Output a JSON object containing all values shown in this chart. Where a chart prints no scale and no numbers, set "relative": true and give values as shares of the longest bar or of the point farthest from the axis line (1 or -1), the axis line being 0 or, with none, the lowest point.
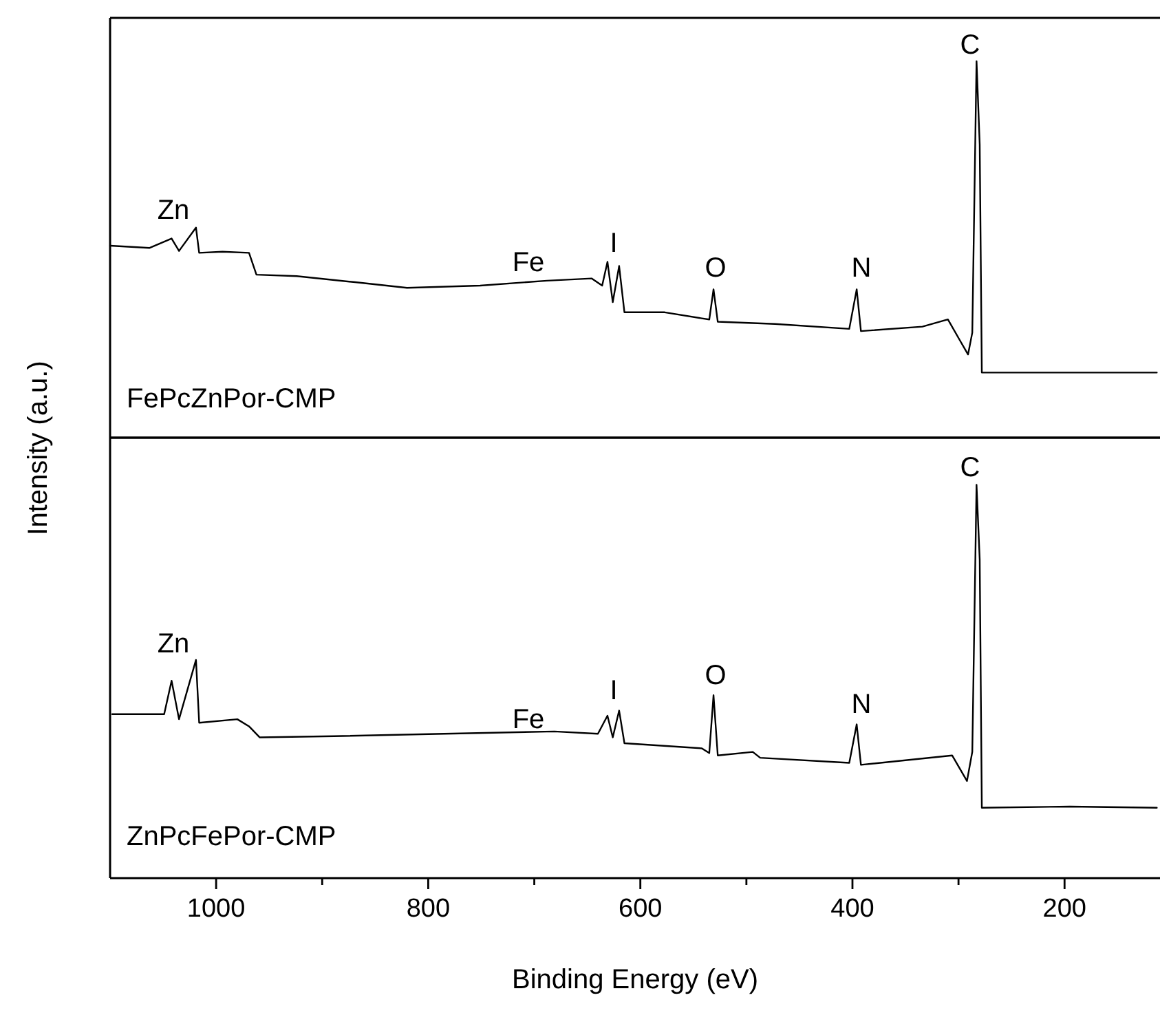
{
  "chart_data": [
    {
      "type": "line",
      "relative": true,
      "xlim": [
        1100,
        110
      ],
      "tick_labels": false,
      "ylabel": "Intensity (a.u.)",
      "x": [
        1100,
        1063,
        1042,
        1035,
        1019,
        1016,
        994,
        969,
        962,
        924,
        869,
        820,
        751,
        688,
        646,
        636,
        631,
        626,
        620,
        615,
        577,
        542,
        535,
        531,
        527,
        473,
        403,
        396,
        392,
        334,
        310,
        299,
        291,
        287,
        283,
        280,
        278,
        195,
        113
      ],
      "series": [
        {
          "color": "#000000",
          "values": [
            0.51,
            0.504,
            0.529,
            0.496,
            0.558,
            0.491,
            0.494,
            0.491,
            0.433,
            0.429,
            0.413,
            0.398,
            0.404,
            0.417,
            0.423,
            0.404,
            0.467,
            0.36,
            0.456,
            0.333,
            0.333,
            0.317,
            0.314,
            0.394,
            0.308,
            0.302,
            0.289,
            0.394,
            0.283,
            0.295,
            0.314,
            0.26,
            0.221,
            0.279,
            1.0,
            0.779,
            0.173,
            0.173,
            0.173
          ]
        }
      ],
      "annotations": [
        "Zn",
        "Fe",
        "I",
        "O",
        "N",
        "C",
        "FePcZnPor-CMP"
      ]
    },
    {
      "type": "line",
      "relative": true,
      "xlim": [
        1100,
        110
      ],
      "tick_labels": "x",
      "xlabel": "Binding Energy (eV)",
      "xticks": [
        1000,
        {
          "value": 900,
          "label": null
        },
        800,
        {
          "value": 700,
          "label": null
        },
        600,
        {
          "value": 500,
          "label": null
        },
        400,
        {
          "value": 300,
          "label": null
        },
        200
      ],
      "x": [
        1098,
        1049,
        1042,
        1035,
        1019,
        1016,
        980,
        969,
        959,
        889,
        785,
        681,
        640,
        631,
        626,
        620,
        615,
        542,
        535,
        531,
        527,
        494,
        487,
        403,
        396,
        392,
        306,
        292,
        287,
        283,
        280,
        278,
        195,
        113
      ],
      "series": [
        {
          "color": "#000000",
          "values": [
            0.417,
            0.417,
            0.502,
            0.404,
            0.555,
            0.395,
            0.404,
            0.386,
            0.358,
            0.361,
            0.367,
            0.373,
            0.367,
            0.413,
            0.358,
            0.426,
            0.343,
            0.33,
            0.318,
            0.465,
            0.312,
            0.321,
            0.306,
            0.293,
            0.391,
            0.288,
            0.312,
            0.247,
            0.321,
            1.0,
            0.81,
            0.179,
            0.182,
            0.179
          ]
        }
      ],
      "annotations": [
        "Zn",
        "Fe",
        "I",
        "O",
        "N",
        "C",
        "ZnPcFePor-CMP"
      ]
    }
  ]
}
